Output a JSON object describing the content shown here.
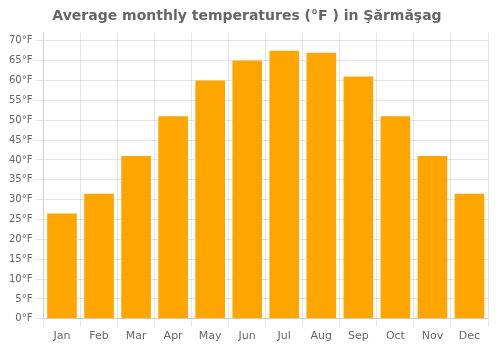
{
  "chart_data": {
    "type": "bar",
    "title": "Average monthly temperatures (°F ) in Şărmăşag",
    "categories": [
      "Jan",
      "Feb",
      "Mar",
      "Apr",
      "May",
      "Jun",
      "Jul",
      "Aug",
      "Sep",
      "Oct",
      "Nov",
      "Dec"
    ],
    "values": [
      26.5,
      31.5,
      41.0,
      51.0,
      60.0,
      65.0,
      67.5,
      67.0,
      61.0,
      51.0,
      41.0,
      31.5
    ],
    "color": "#FFA500",
    "ylim": [
      0,
      72
    ],
    "yticks": [
      {
        "value": 0,
        "label": "0°F"
      },
      {
        "value": 5,
        "label": "5°F"
      },
      {
        "value": 10,
        "label": "10°F"
      },
      {
        "value": 15,
        "label": "15°F"
      },
      {
        "value": 20,
        "label": "20°F"
      },
      {
        "value": 25,
        "label": "25°F"
      },
      {
        "value": 30,
        "label": "30°F"
      },
      {
        "value": 35,
        "label": "35°F"
      },
      {
        "value": 40,
        "label": "40°F"
      },
      {
        "value": 45,
        "label": "45°F"
      },
      {
        "value": 50,
        "label": "50°F"
      },
      {
        "value": 55,
        "label": "55°F"
      },
      {
        "value": 60,
        "label": "60°F"
      },
      {
        "value": 65,
        "label": "65°F"
      },
      {
        "value": 70,
        "label": "70°F"
      }
    ],
    "grid": true
  }
}
